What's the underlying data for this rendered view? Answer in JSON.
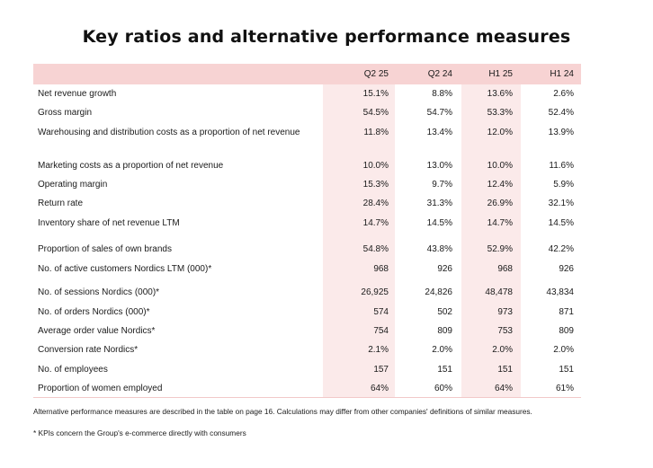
{
  "title": "Key ratios and alternative performance measures",
  "columns": [
    "Q2 25",
    "Q2 24",
    "H1 25",
    "H1 24"
  ],
  "rows": [
    {
      "label": "Net revenue growth",
      "values": [
        "15.1%",
        "8.8%",
        "13.6%",
        "2.6%"
      ]
    },
    {
      "label": "Gross margin",
      "values": [
        "54.5%",
        "54.7%",
        "53.3%",
        "52.4%"
      ]
    },
    {
      "label": "Warehousing and distribution costs as a proportion of net revenue",
      "values": [
        "11.8%",
        "13.4%",
        "12.0%",
        "13.9%"
      ]
    },
    {
      "label": "Marketing costs as a proportion of net revenue",
      "values": [
        "10.0%",
        "13.0%",
        "10.0%",
        "11.6%"
      ]
    },
    {
      "label": "Operating margin",
      "values": [
        "15.3%",
        "9.7%",
        "12.4%",
        "5.9%"
      ]
    },
    {
      "label": "Return rate",
      "values": [
        "28.4%",
        "31.3%",
        "26.9%",
        "32.1%"
      ]
    },
    {
      "label": "Inventory share of net revenue LTM",
      "values": [
        "14.7%",
        "14.5%",
        "14.7%",
        "14.5%"
      ]
    },
    {
      "label": "Proportion of sales of own brands",
      "values": [
        "54.8%",
        "43.8%",
        "52.9%",
        "42.2%"
      ]
    },
    {
      "label": "No. of active customers Nordics LTM (000)*",
      "values": [
        "968",
        "926",
        "968",
        "926"
      ]
    },
    {
      "label": "No. of sessions Nordics (000)*",
      "values": [
        "26,925",
        "24,826",
        "48,478",
        "43,834"
      ]
    },
    {
      "label": "No. of orders Nordics (000)*",
      "values": [
        "574",
        "502",
        "973",
        "871"
      ]
    },
    {
      "label": "Average order value Nordics*",
      "values": [
        "754",
        "809",
        "753",
        "809"
      ]
    },
    {
      "label": "Conversion rate Nordics*",
      "values": [
        "2.1%",
        "2.0%",
        "2.0%",
        "2.0%"
      ]
    },
    {
      "label": "No. of employees",
      "values": [
        "157",
        "151",
        "151",
        "151"
      ]
    },
    {
      "label": "Proportion of women employed",
      "values": [
        "64%",
        "60%",
        "64%",
        "61%"
      ]
    }
  ],
  "footnotes": [
    "Alternative performance measures are described in the table on page 16. Calculations may differ from other companies' definitions of similar measures.",
    "* KPIs concern the Group's e-commerce directly with consumers"
  ]
}
